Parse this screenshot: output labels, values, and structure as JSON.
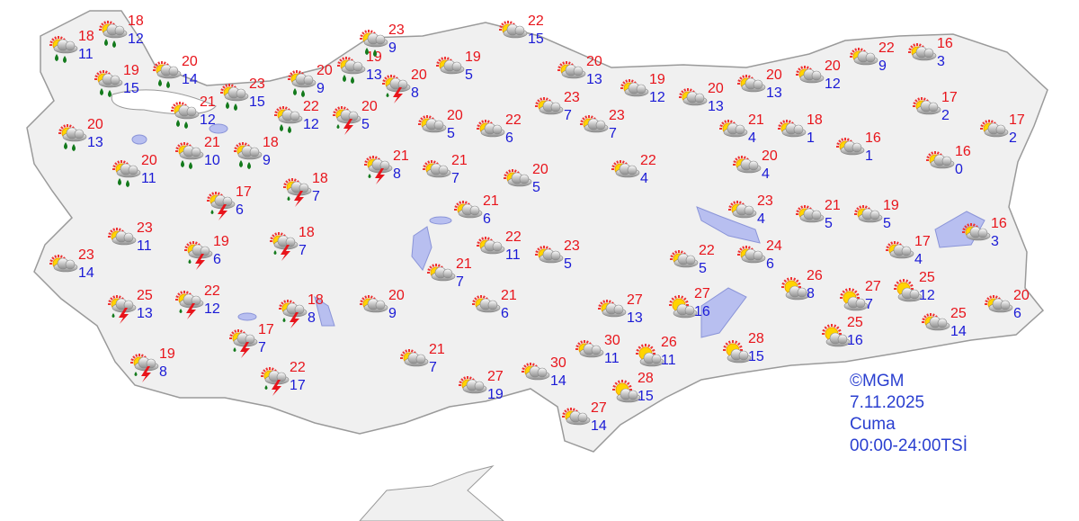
{
  "legend": {
    "copyright": "©MGM",
    "date": "7.11.2025",
    "day": "Cuma",
    "period": "00:00-24:00TSİ"
  },
  "colors": {
    "max_temp": "#e8141b",
    "min_temp": "#1a1ad6",
    "land": "#f0f0f0",
    "water": "#b8bff0",
    "border": "#9a9a9a"
  },
  "icon_types": {
    "R": "partly-cloudy-rain",
    "T": "thunderstorm",
    "P": "partly-cloudy",
    "S": "sunny"
  },
  "stations": [
    {
      "icon": "R",
      "max": 18,
      "min": 11
    },
    {
      "icon": "R",
      "max": 18,
      "min": 12
    },
    {
      "icon": "R",
      "max": 19,
      "min": 15
    },
    {
      "icon": "R",
      "max": 20,
      "min": 14
    },
    {
      "icon": "R",
      "max": 20,
      "min": 13
    },
    {
      "icon": "R",
      "max": 21,
      "min": 12
    },
    {
      "icon": "R",
      "max": 23,
      "min": 15
    },
    {
      "icon": "R",
      "max": 20,
      "min": 11
    },
    {
      "icon": "R",
      "max": 21,
      "min": 10
    },
    {
      "icon": "R",
      "max": 18,
      "min": 9
    },
    {
      "icon": "R",
      "max": 20,
      "min": 9
    },
    {
      "icon": "R",
      "max": 22,
      "min": 12
    },
    {
      "icon": "R",
      "max": 19,
      "min": 13
    },
    {
      "icon": "R",
      "max": 23,
      "min": 9
    },
    {
      "icon": "T",
      "max": 20,
      "min": 8
    },
    {
      "icon": "T",
      "max": 20,
      "min": 5
    },
    {
      "icon": "T",
      "max": 21,
      "min": 8
    },
    {
      "icon": "T",
      "max": 18,
      "min": 7
    },
    {
      "icon": "T",
      "max": 17,
      "min": 6
    },
    {
      "icon": "T",
      "max": 18,
      "min": 7
    },
    {
      "icon": "T",
      "max": 19,
      "min": 6
    },
    {
      "icon": "P",
      "max": 23,
      "min": 11
    },
    {
      "icon": "P",
      "max": 23,
      "min": 14
    },
    {
      "icon": "T",
      "max": 25,
      "min": 13
    },
    {
      "icon": "T",
      "max": 22,
      "min": 12
    },
    {
      "icon": "T",
      "max": 18,
      "min": 8
    },
    {
      "icon": "T",
      "max": 17,
      "min": 7
    },
    {
      "icon": "T",
      "max": 19,
      "min": 8
    },
    {
      "icon": "T",
      "max": 22,
      "min": 17
    },
    {
      "icon": "P",
      "max": 20,
      "min": 9
    },
    {
      "icon": "P",
      "max": 21,
      "min": 7
    },
    {
      "icon": "P",
      "max": 27,
      "min": 19
    },
    {
      "icon": "P",
      "max": 30,
      "min": 14
    },
    {
      "icon": "P",
      "max": 27,
      "min": 14
    },
    {
      "icon": "P",
      "max": 30,
      "min": 11
    },
    {
      "icon": "S",
      "max": 26,
      "min": 11
    },
    {
      "icon": "S",
      "max": 28,
      "min": 15
    },
    {
      "icon": "S",
      "max": 28,
      "min": 15
    },
    {
      "icon": "S",
      "max": 27,
      "min": 16
    },
    {
      "icon": "P",
      "max": 27,
      "min": 13
    },
    {
      "icon": "P",
      "max": 21,
      "min": 6
    },
    {
      "icon": "P",
      "max": 21,
      "min": 7
    },
    {
      "icon": "P",
      "max": 22,
      "min": 11
    },
    {
      "icon": "P",
      "max": 23,
      "min": 5
    },
    {
      "icon": "P",
      "max": 21,
      "min": 6
    },
    {
      "icon": "P",
      "max": 20,
      "min": 5
    },
    {
      "icon": "P",
      "max": 21,
      "min": 7
    },
    {
      "icon": "P",
      "max": 20,
      "min": 5
    },
    {
      "icon": "P",
      "max": 22,
      "min": 6
    },
    {
      "icon": "P",
      "max": 19,
      "min": 5
    },
    {
      "icon": "P",
      "max": 22,
      "min": 15
    },
    {
      "icon": "P",
      "max": 23,
      "min": 7
    },
    {
      "icon": "P",
      "max": 20,
      "min": 13
    },
    {
      "icon": "P",
      "max": 23,
      "min": 7
    },
    {
      "icon": "P",
      "max": 19,
      "min": 12
    },
    {
      "icon": "P",
      "max": 22,
      "min": 4
    },
    {
      "icon": "P",
      "max": 20,
      "min": 13
    },
    {
      "icon": "P",
      "max": 20,
      "min": 13
    },
    {
      "icon": "P",
      "max": 21,
      "min": 4
    },
    {
      "icon": "P",
      "max": 20,
      "min": 12
    },
    {
      "icon": "P",
      "max": 18,
      "min": 1
    },
    {
      "icon": "P",
      "max": 20,
      "min": 4
    },
    {
      "icon": "P",
      "max": 23,
      "min": 4
    },
    {
      "icon": "P",
      "max": 22,
      "min": 5
    },
    {
      "icon": "P",
      "max": 24,
      "min": 6
    },
    {
      "icon": "S",
      "max": 26,
      "min": 8
    },
    {
      "icon": "S",
      "max": 27,
      "min": 7
    },
    {
      "icon": "S",
      "max": 25,
      "min": 12
    },
    {
      "icon": "S",
      "max": 25,
      "min": 16
    },
    {
      "icon": "P",
      "max": 25,
      "min": 14
    },
    {
      "icon": "P",
      "max": 20,
      "min": 6
    },
    {
      "icon": "P",
      "max": 16,
      "min": 3
    },
    {
      "icon": "P",
      "max": 17,
      "min": 4
    },
    {
      "icon": "P",
      "max": 19,
      "min": 5
    },
    {
      "icon": "P",
      "max": 21,
      "min": 5
    },
    {
      "icon": "P",
      "max": 16,
      "min": 1
    },
    {
      "icon": "P",
      "max": 16,
      "min": 0
    },
    {
      "icon": "P",
      "max": 17,
      "min": 2
    },
    {
      "icon": "P",
      "max": 17,
      "min": 2
    },
    {
      "icon": "P",
      "max": 16,
      "min": 3
    },
    {
      "icon": "P",
      "max": 22,
      "min": 9
    }
  ]
}
